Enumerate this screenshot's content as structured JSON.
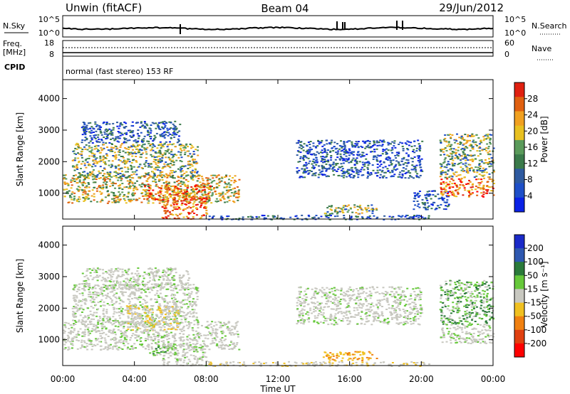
{
  "header": {
    "station": "Unwin (fitACF)",
    "beam": "Beam 04",
    "date": "29/Jun/2012"
  },
  "top_panels": {
    "nsky_label": "N.Sky",
    "nsky_ticks": [
      "10^5",
      "10^0"
    ],
    "nsearch_label": "N.Search",
    "nsearch_ticks": [
      "10^5",
      "10^0"
    ],
    "freq_label": "Freq.",
    "freq_unit": "[MHz]",
    "freq_ticks": [
      "18",
      "8"
    ],
    "nave_label": "Nave",
    "nave_ticks": [
      "60",
      "0"
    ],
    "cpid_label": "CPID",
    "cpid_text": "normal (fast stereo) 153 RF"
  },
  "colors": {
    "power_scale": [
      "#0a22e6",
      "#1e4fc8",
      "#2e5aa0",
      "#3a7a4a",
      "#5a9a5a",
      "#e8c020",
      "#f0a020",
      "#e06010",
      "#e02010",
      "#ff0000"
    ],
    "velocity_scale": [
      "#1a2ac8",
      "#2e58b0",
      "#2a7a3a",
      "#66c83a",
      "#c8c8c0",
      "#f0c020",
      "#f08010",
      "#e04010",
      "#ff0000"
    ]
  },
  "chart_data": [
    {
      "type": "heatmap",
      "title": "",
      "xlabel": "",
      "ylabel": "Slant Range [km]",
      "x_ticks": [
        "00:00",
        "04:00",
        "08:00",
        "12:00",
        "16:00",
        "20:00",
        "00:00"
      ],
      "x_range_hours": [
        0,
        24
      ],
      "y_ticks": [
        "1000",
        "2000",
        "3000",
        "4000"
      ],
      "ylim": [
        180,
        4600
      ],
      "colorbar": {
        "label": "Power [dB]",
        "ticks": [
          "4",
          "8",
          "12",
          "16",
          "20",
          "24",
          "28"
        ],
        "range": [
          0,
          32
        ]
      },
      "patches": [
        {
          "t0": 0.0,
          "t1": 9.8,
          "r0": 700,
          "r1": 1600,
          "level": "high"
        },
        {
          "t0": 4.5,
          "t1": 8.2,
          "r0": 800,
          "r1": 1300,
          "level": "peak"
        },
        {
          "t0": 0.5,
          "t1": 7.5,
          "r0": 1500,
          "r1": 2600,
          "level": "mid"
        },
        {
          "t0": 1.0,
          "t1": 6.5,
          "r0": 2600,
          "r1": 3300,
          "level": "low"
        },
        {
          "t0": 5.5,
          "t1": 8.0,
          "r0": 200,
          "r1": 900,
          "level": "peak"
        },
        {
          "t0": 8.0,
          "t1": 20.5,
          "r0": 180,
          "r1": 320,
          "level": "low"
        },
        {
          "t0": 14.5,
          "t1": 17.5,
          "r0": 350,
          "r1": 650,
          "level": "mid"
        },
        {
          "t0": 13.0,
          "t1": 20.0,
          "r0": 1500,
          "r1": 2700,
          "level": "low"
        },
        {
          "t0": 19.5,
          "t1": 21.5,
          "r0": 500,
          "r1": 1100,
          "level": "low"
        },
        {
          "t0": 21.0,
          "t1": 24.0,
          "r0": 900,
          "r1": 1500,
          "level": "peak"
        },
        {
          "t0": 21.0,
          "t1": 24.0,
          "r0": 1500,
          "r1": 2900,
          "level": "mid"
        }
      ]
    },
    {
      "type": "heatmap",
      "title": "",
      "xlabel": "Time UT",
      "ylabel": "Slant Range [km]",
      "x_ticks": [
        "00:00",
        "04:00",
        "08:00",
        "12:00",
        "16:00",
        "20:00",
        "00:00"
      ],
      "x_range_hours": [
        0,
        24
      ],
      "y_ticks": [
        "1000",
        "2000",
        "3000",
        "4000"
      ],
      "ylim": [
        180,
        4600
      ],
      "colorbar": {
        "label": "Velocity [m s⁻¹]",
        "ticks": [
          "200",
          "100",
          "50",
          "15",
          "-15",
          "-50",
          "-100",
          "-200"
        ],
        "range": [
          -250,
          250
        ]
      },
      "patches": [
        {
          "t0": 0.0,
          "t1": 9.8,
          "r0": 700,
          "r1": 1600,
          "level": "zero"
        },
        {
          "t0": 0.5,
          "t1": 7.5,
          "r0": 1500,
          "r1": 2800,
          "level": "zero"
        },
        {
          "t0": 1.0,
          "t1": 7.0,
          "r0": 2600,
          "r1": 3300,
          "level": "zero"
        },
        {
          "t0": 5.5,
          "t1": 8.0,
          "r0": 200,
          "r1": 900,
          "level": "zero"
        },
        {
          "t0": 4.8,
          "t1": 6.2,
          "r0": 500,
          "r1": 800,
          "level": "pos_small"
        },
        {
          "t0": 3.5,
          "t1": 6.5,
          "r0": 1300,
          "r1": 2100,
          "level": "neg_small"
        },
        {
          "t0": 8.0,
          "t1": 20.5,
          "r0": 180,
          "r1": 320,
          "level": "neg_small"
        },
        {
          "t0": 14.5,
          "t1": 17.5,
          "r0": 350,
          "r1": 650,
          "level": "neg_mid"
        },
        {
          "t0": 13.0,
          "t1": 20.0,
          "r0": 1500,
          "r1": 2700,
          "level": "zero"
        },
        {
          "t0": 21.0,
          "t1": 24.0,
          "r0": 900,
          "r1": 1500,
          "level": "zero"
        },
        {
          "t0": 21.0,
          "t1": 24.0,
          "r0": 1500,
          "r1": 2900,
          "level": "pos_small"
        }
      ]
    }
  ]
}
